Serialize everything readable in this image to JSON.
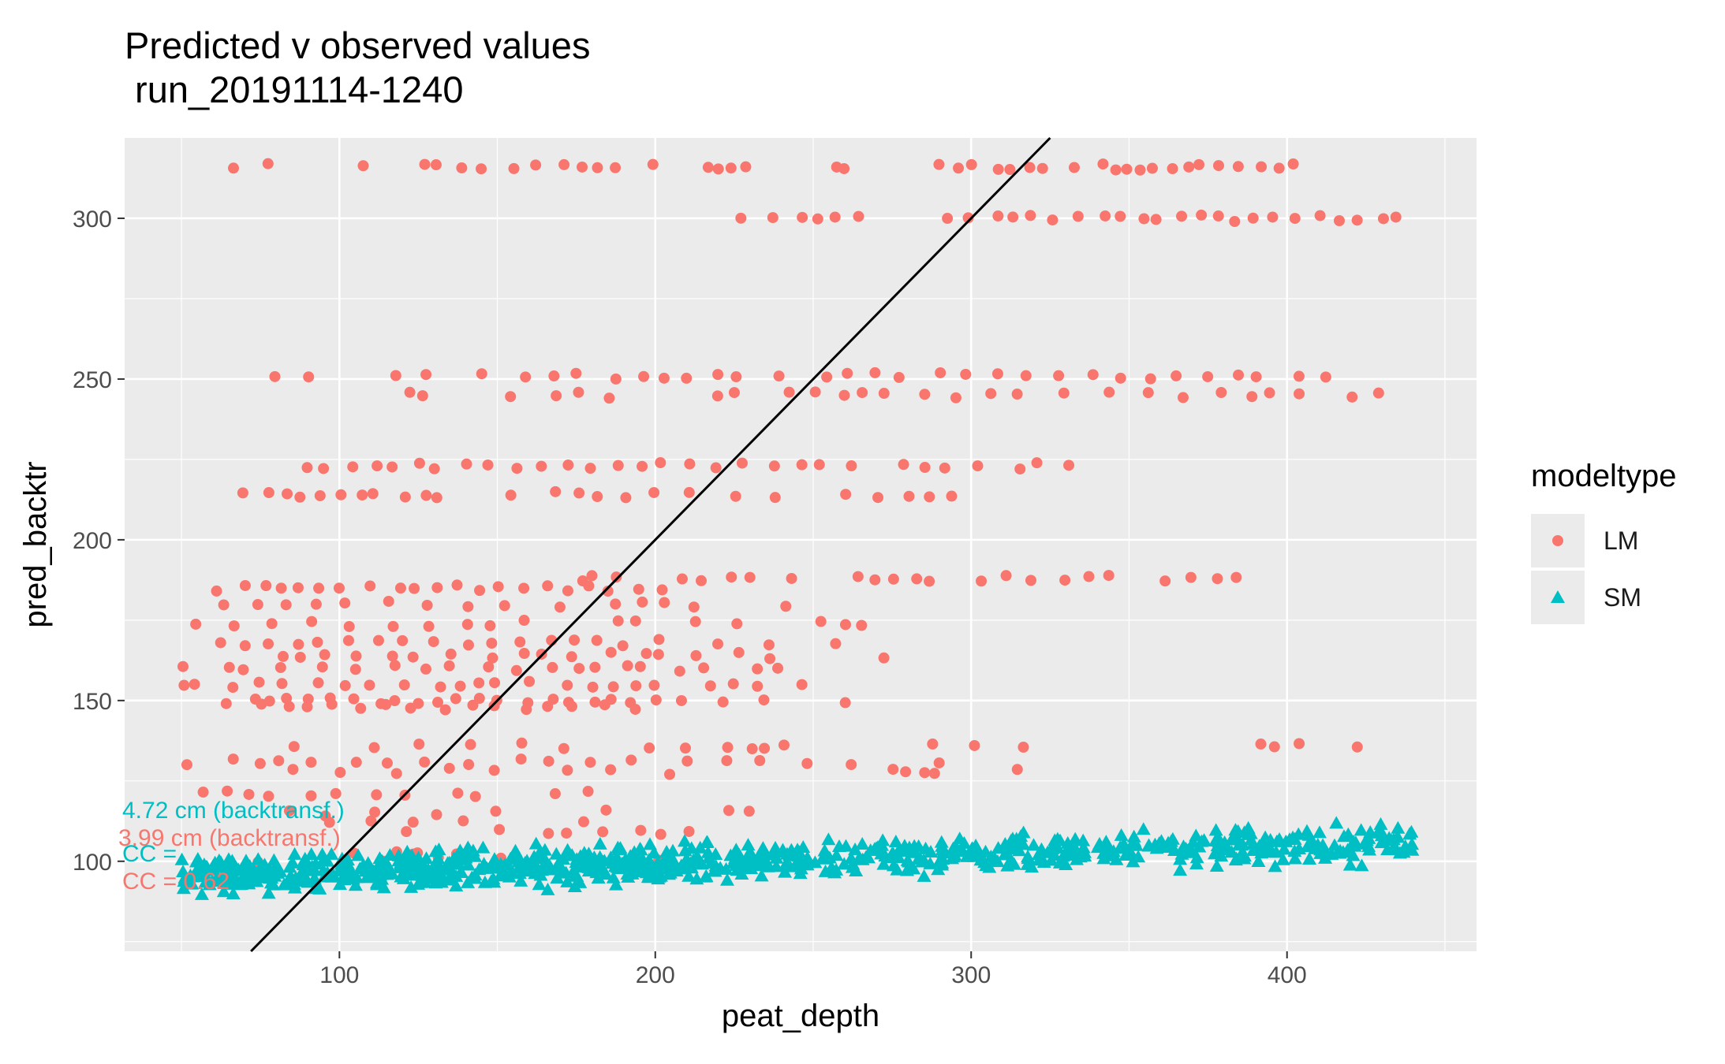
{
  "chart_data": {
    "type": "scatter",
    "title": "Predicted v observed values\n run_20191114-1240",
    "xlabel": "peat_depth",
    "ylabel": "pred_backtr",
    "xlim": [
      32,
      460
    ],
    "ylim": [
      72,
      325
    ],
    "x_ticks": [
      100,
      200,
      300,
      400
    ],
    "y_ticks": [
      100,
      150,
      200,
      250,
      300
    ],
    "grid": true,
    "legend": {
      "title": "modeltype",
      "position": "right",
      "entries": [
        {
          "name": "LM",
          "shape": "circle",
          "color": "#F8766D"
        },
        {
          "name": "SM",
          "shape": "triangle",
          "color": "#00BFC4"
        }
      ]
    },
    "reference_line": {
      "slope": 1,
      "intercept": 0,
      "color": "#000000"
    },
    "annotations": [
      {
        "text": "4.72 cm (backtransf.)",
        "color": "#00BFC4"
      },
      {
        "text": "3.99 cm (backtransf.)",
        "color": "#F8766D"
      },
      {
        "text": "CC = ",
        "color": "#00BFC4"
      },
      {
        "text": "CC = 0.62",
        "color": "#F8766D"
      }
    ],
    "series": [
      {
        "name": "LM",
        "rows": [
          {
            "y": 316,
            "x": [
              66,
              77,
              107,
              128,
              130,
              138,
              144,
              155,
              163,
              170,
              178,
              181,
              188,
              198,
              217,
              219,
              225,
              229,
              256,
              259,
              290,
              295,
              300,
              308,
              312,
              318,
              322,
              333,
              342,
              346,
              350,
              353,
              358,
              364,
              368,
              372,
              378,
              386,
              392,
              397,
              402
            ]
          },
          {
            "y": 300,
            "x": [
              228,
              236,
              248,
              251,
              256,
              265,
              291,
              300,
              308,
              313,
              320,
              327,
              334,
              343,
              348,
              355,
              360,
              366,
              372,
              378,
              384,
              390,
              395,
              402,
              410,
              416,
              422,
              430,
              435
            ]
          },
          {
            "y": 251,
            "x": [
              80,
              91,
              119,
              126,
              145,
              158,
              168,
              176,
              188,
              196,
              204,
              211,
              219,
              225,
              240,
              253,
              262,
              270,
              278,
              290,
              299,
              309,
              318,
              327,
              338,
              348,
              356,
              366,
              375,
              384,
              390,
              404,
              412
            ]
          },
          {
            "y": 245,
            "x": [
              121,
              126,
              153,
              170,
              176,
              184,
              220,
              226,
              243,
              250,
              259,
              265,
              273,
              285,
              295,
              305,
              316,
              330,
              343,
              356,
              368,
              380,
              388,
              395,
              403,
              420,
              428
            ]
          },
          {
            "y": 223,
            "x": [
              89,
              96,
              105,
              112,
              118,
              125,
              131,
              141,
              147,
              156,
              163,
              172,
              180,
              188,
              195,
              203,
              210,
              220,
              227,
              238,
              245,
              252,
              262,
              278,
              286,
              293,
              301,
              316,
              322,
              330
            ]
          },
          {
            "y": 214,
            "x": [
              68,
              77,
              82,
              87,
              93,
              100,
              106,
              112,
              122,
              126,
              131,
              153,
              168,
              175,
              182,
              190,
              201,
              211,
              225,
              239,
              260,
              270,
              281,
              288,
              295
            ]
          },
          {
            "y": 188,
            "x": [
              176,
              180,
              189,
              208,
              216,
              225,
              229,
              244,
              265,
              271,
              276,
              283,
              288,
              302,
              311,
              318,
              331,
              336,
              344,
              362,
              370,
              378,
              384
            ]
          },
          {
            "y": 185,
            "x": [
              61,
              70,
              76,
              82,
              88,
              94,
              99,
              110,
              118,
              124,
              130,
              136,
              143,
              150,
              159,
              167,
              173,
              180,
              186,
              194,
              201
            ]
          },
          {
            "y": 180,
            "x": [
              62,
              75,
              84,
              92,
              101,
              115,
              127,
              140,
              152,
              170,
              186,
              195,
              203,
              212,
              240
            ]
          },
          {
            "y": 174,
            "x": [
              56,
              67,
              79,
              91,
              103,
              116,
              128,
              141,
              149,
              159,
              188,
              194,
              214,
              226,
              253,
              259,
              265
            ]
          },
          {
            "y": 168,
            "x": [
              62,
              70,
              78,
              86,
              94,
              102,
              112,
              121,
              131,
              140,
              148,
              156,
              168,
              175,
              181,
              189,
              200,
              219,
              237,
              258
            ]
          },
          {
            "y": 164,
            "x": [
              81,
              87,
              96,
              105,
              117,
              124,
              134,
              149,
              158,
              164,
              175,
              186,
              196,
              202,
              213,
              225,
              235,
              271
            ]
          },
          {
            "y": 160,
            "x": [
              50,
              64,
              70,
              80,
              94,
              106,
              117,
              127,
              135,
              146,
              156,
              166,
              176,
              182,
              190,
              196,
              207,
              216,
              232,
              240
            ]
          },
          {
            "y": 155,
            "x": [
              51,
              55,
              65,
              74,
              83,
              92,
              101,
              110,
              121,
              131,
              137,
              143,
              149,
              160,
              171,
              181,
              188,
              193,
              199,
              217,
              224,
              231,
              246
            ]
          },
          {
            "y": 150,
            "x": [
              65,
              72,
              77,
              82,
              89,
              97,
              104,
              112,
              119,
              125,
              131,
              138,
              145,
              151,
              160,
              168,
              174,
              181,
              186,
              192,
              201,
              208,
              222,
              235,
              259
            ]
          },
          {
            "y": 148,
            "x": [
              75,
              84,
              91,
              99,
              108,
              116,
              124,
              133,
              142,
              150,
              158,
              166,
              175,
              184,
              193
            ]
          },
          {
            "y": 136,
            "x": [
              87,
              110,
              125,
              141,
              157,
              171,
              198,
              211,
              223,
              230,
              236,
              242,
              288,
              300,
              316,
              393,
              397,
              405,
              421
            ]
          },
          {
            "y": 131,
            "x": [
              53,
              67,
              75,
              81,
              90,
              104,
              115,
              128,
              141,
              157,
              167,
              178,
              193,
              211,
              223,
              234,
              247,
              263,
              290
            ]
          },
          {
            "y": 128,
            "x": [
              84,
              99,
              119,
              134,
              148,
              173,
              186,
              204,
              275,
              279,
              284,
              289,
              316
            ]
          },
          {
            "y": 121,
            "x": [
              58,
              64,
              71,
              79,
              92,
              100,
              112,
              120,
              137,
              144,
              169,
              180
            ]
          },
          {
            "y": 115,
            "x": [
              85,
              97,
              110,
              131,
              148,
              183,
              223,
              229
            ]
          },
          {
            "y": 113,
            "x": [
              96,
              110,
              123,
              139,
              176
            ]
          },
          {
            "y": 109,
            "x": [
              121,
              150,
              165,
              172,
              183,
              194,
              202,
              211
            ]
          },
          {
            "y": 102,
            "x": [
              106,
              119,
              122,
              126,
              130,
              137
            ]
          },
          {
            "y": 100,
            "x": [
              74,
              114,
              136,
              152,
              184,
              201
            ]
          }
        ]
      },
      {
        "name": "SM",
        "regression": {
          "y_at_x0": 95,
          "x0": 50,
          "y_at_x1": 106,
          "x1": 440
        },
        "n_points": 900
      }
    ]
  }
}
